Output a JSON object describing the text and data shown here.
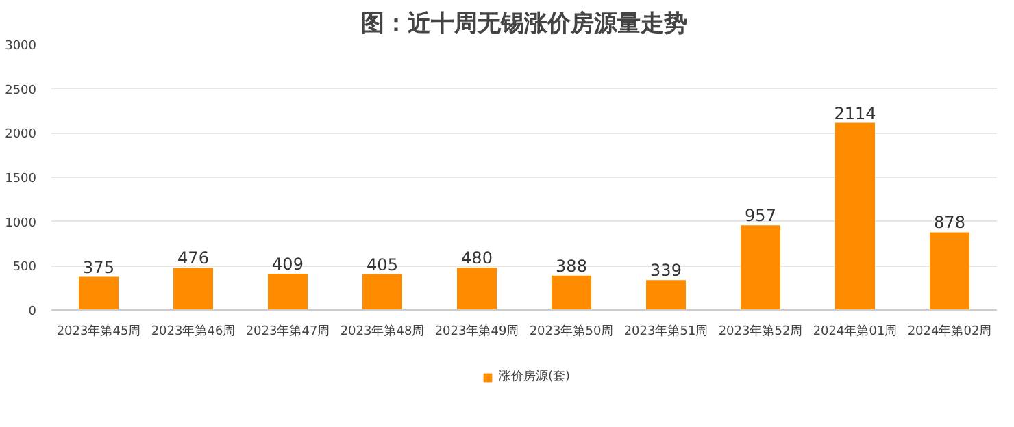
{
  "chart_data": {
    "type": "bar",
    "title": "图：近十周无锡涨价房源量走势",
    "categories": [
      "2023年第45周",
      "2023年第46周",
      "2023年第47周",
      "2023年第48周",
      "2023年第49周",
      "2023年第50周",
      "2023年第51周",
      "2023年第52周",
      "2024年第01周",
      "2024年第02周"
    ],
    "series": [
      {
        "name": "涨价房源(套)",
        "color": "#ff8c00",
        "values": [
          375,
          476,
          409,
          405,
          480,
          388,
          339,
          957,
          2114,
          878
        ]
      }
    ],
    "ylim": [
      0,
      3000
    ],
    "yticks": [
      0,
      500,
      1000,
      1500,
      2000,
      2500,
      3000
    ],
    "grid": "y",
    "legend": "bottom",
    "data_labels": true
  }
}
